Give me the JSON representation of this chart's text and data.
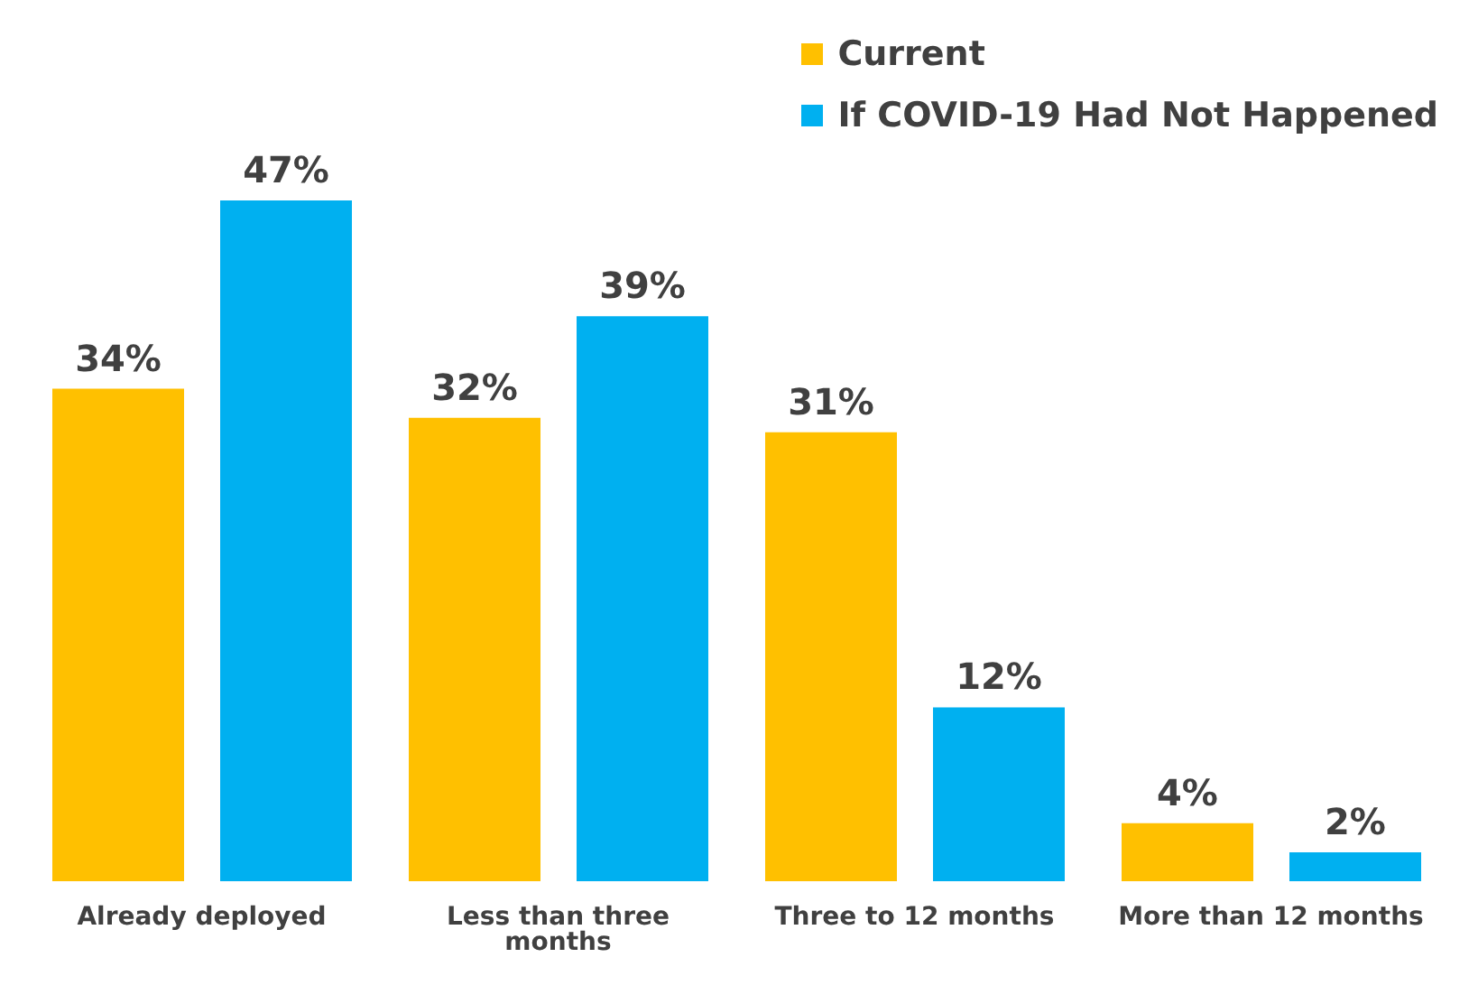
{
  "chart_data": {
    "type": "bar",
    "categories": [
      "Already deployed",
      "Less than three months",
      "Three to 12 months",
      "More than 12 months"
    ],
    "series": [
      {
        "name": "Current",
        "color": "#ffc000",
        "values": [
          34,
          32,
          31,
          4
        ],
        "value_labels": [
          "34%",
          "32%",
          "31%",
          "4%"
        ]
      },
      {
        "name": "If COVID-19 Had Not Happened",
        "color": "#00b0f0",
        "values": [
          47,
          39,
          12,
          2
        ],
        "value_labels": [
          "47%",
          "39%",
          "12%",
          "2%"
        ]
      }
    ],
    "legend": "top right",
    "grid": false
  }
}
